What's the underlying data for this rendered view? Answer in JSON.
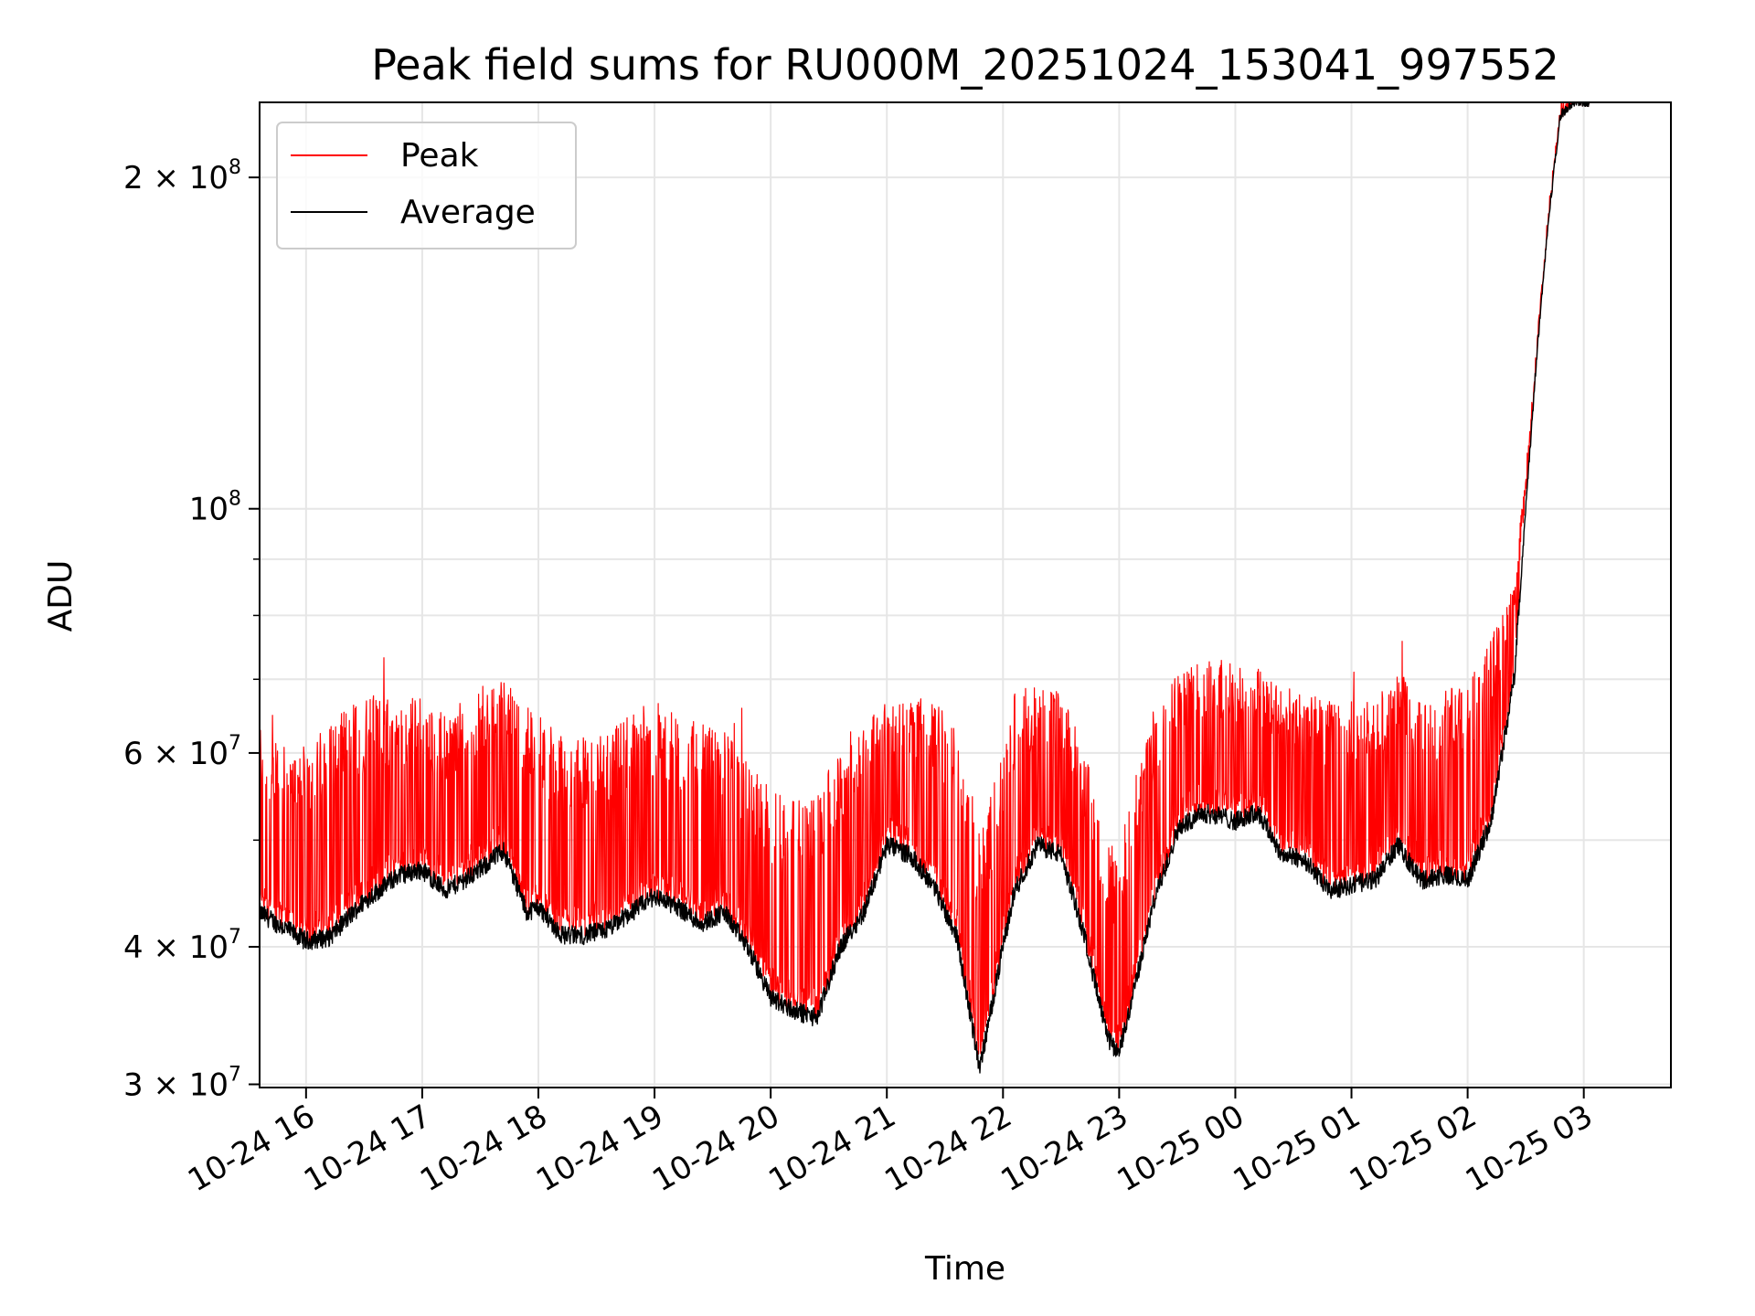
{
  "chart_data": {
    "type": "line",
    "title": "Peak field sums for RU000M_20251024_153041_997552",
    "xlabel": "Time",
    "ylabel": "ADU",
    "yscale": "log",
    "ylim": [
      29800000,
      234000000
    ],
    "xlim_hours": [
      -0.4,
      11.75
    ],
    "x_tick_labels": [
      "10-24 16",
      "10-24 17",
      "10-24 18",
      "10-24 19",
      "10-24 20",
      "10-24 21",
      "10-24 22",
      "10-24 23",
      "10-25 00",
      "10-25 01",
      "10-25 02",
      "10-25 03"
    ],
    "x_tick_hours": [
      0,
      1,
      2,
      3,
      4,
      5,
      6,
      7,
      8,
      9,
      10,
      11
    ],
    "y_ticks": [
      {
        "value": 30000000,
        "mantissa": "3",
        "exp": "7"
      },
      {
        "value": 40000000,
        "mantissa": "4",
        "exp": "7"
      },
      {
        "value": 60000000,
        "mantissa": "6",
        "exp": "7"
      },
      {
        "value": 100000000,
        "mantissa": "",
        "exp": "8"
      },
      {
        "value": 200000000,
        "mantissa": "2",
        "exp": "8"
      }
    ],
    "y_minor": [
      50000000,
      70000000,
      80000000,
      90000000
    ],
    "grid": true,
    "legend_position": "top-left",
    "time_origin": "2025-10-24 16:00",
    "series": [
      {
        "name": "Average",
        "color": "#000000",
        "x_hours": [
          -0.4,
          -0.25,
          0,
          0.2,
          0.5,
          0.8,
          1.0,
          1.2,
          1.5,
          1.7,
          1.9,
          2.0,
          2.2,
          2.4,
          2.6,
          2.8,
          3.0,
          3.2,
          3.4,
          3.6,
          3.8,
          4.0,
          4.2,
          4.4,
          4.6,
          4.8,
          5.0,
          5.2,
          5.4,
          5.6,
          5.8,
          6.0,
          6.1,
          6.3,
          6.5,
          6.7,
          6.9,
          7.0,
          7.1,
          7.3,
          7.5,
          7.7,
          7.9,
          8.0,
          8.2,
          8.4,
          8.6,
          8.8,
          9.0,
          9.2,
          9.4,
          9.6,
          9.8,
          10.0,
          10.2,
          10.4,
          10.5,
          10.6,
          10.7,
          10.8,
          10.9,
          11.0,
          11.05
        ],
        "values": [
          43000000,
          42000000,
          40500000,
          40800000,
          44000000,
          46500000,
          47000000,
          45000000,
          47000000,
          49000000,
          43000000,
          43500000,
          41000000,
          41000000,
          41500000,
          43000000,
          44500000,
          43500000,
          42000000,
          43000000,
          40000000,
          36000000,
          35000000,
          34500000,
          40000000,
          43000000,
          49500000,
          48500000,
          45500000,
          41000000,
          31000000,
          40000000,
          45000000,
          49500000,
          48500000,
          41000000,
          33000000,
          32000000,
          35500000,
          44000000,
          51000000,
          53000000,
          52500000,
          52000000,
          53000000,
          48500000,
          48000000,
          45000000,
          45500000,
          46000000,
          49500000,
          46000000,
          46500000,
          46000000,
          52000000,
          70000000,
          100000000,
          140000000,
          185000000,
          228000000,
          234000000,
          234000000,
          234000000
        ],
        "noise": 0.04
      },
      {
        "name": "Peak",
        "color": "#ff0000",
        "x_hours": [
          -0.4,
          -0.25,
          0,
          0.2,
          0.5,
          0.8,
          1.0,
          1.2,
          1.5,
          1.7,
          1.9,
          2.0,
          2.2,
          2.4,
          2.6,
          2.8,
          3.0,
          3.2,
          3.4,
          3.6,
          3.8,
          4.0,
          4.2,
          4.4,
          4.6,
          4.8,
          5.0,
          5.2,
          5.4,
          5.6,
          5.8,
          6.0,
          6.1,
          6.3,
          6.5,
          6.7,
          6.9,
          7.0,
          7.1,
          7.3,
          7.5,
          7.7,
          7.9,
          8.0,
          8.2,
          8.4,
          8.6,
          8.8,
          9.0,
          9.2,
          9.4,
          9.6,
          9.8,
          10.0,
          10.2,
          10.4,
          10.5,
          10.6,
          10.7,
          10.8,
          10.9,
          11.0,
          11.05
        ],
        "values": [
          65000000,
          60000000,
          60000000,
          63000000,
          67000000,
          66000000,
          67000000,
          64000000,
          68000000,
          70000000,
          65000000,
          64000000,
          61000000,
          61000000,
          62000000,
          64000000,
          66000000,
          64000000,
          63000000,
          62000000,
          58000000,
          55000000,
          54000000,
          54000000,
          60000000,
          64000000,
          66000000,
          67000000,
          66000000,
          63000000,
          50000000,
          60000000,
          67000000,
          69000000,
          67000000,
          60000000,
          49000000,
          48000000,
          54000000,
          65000000,
          71000000,
          72000000,
          72000000,
          71000000,
          71000000,
          68000000,
          67000000,
          66000000,
          66000000,
          66000000,
          70000000,
          67000000,
          68000000,
          68000000,
          75000000,
          85000000,
          105000000,
          140000000,
          185000000,
          228000000,
          234000000,
          234000000,
          234000000
        ],
        "max_outlier": 78000000
      }
    ]
  }
}
